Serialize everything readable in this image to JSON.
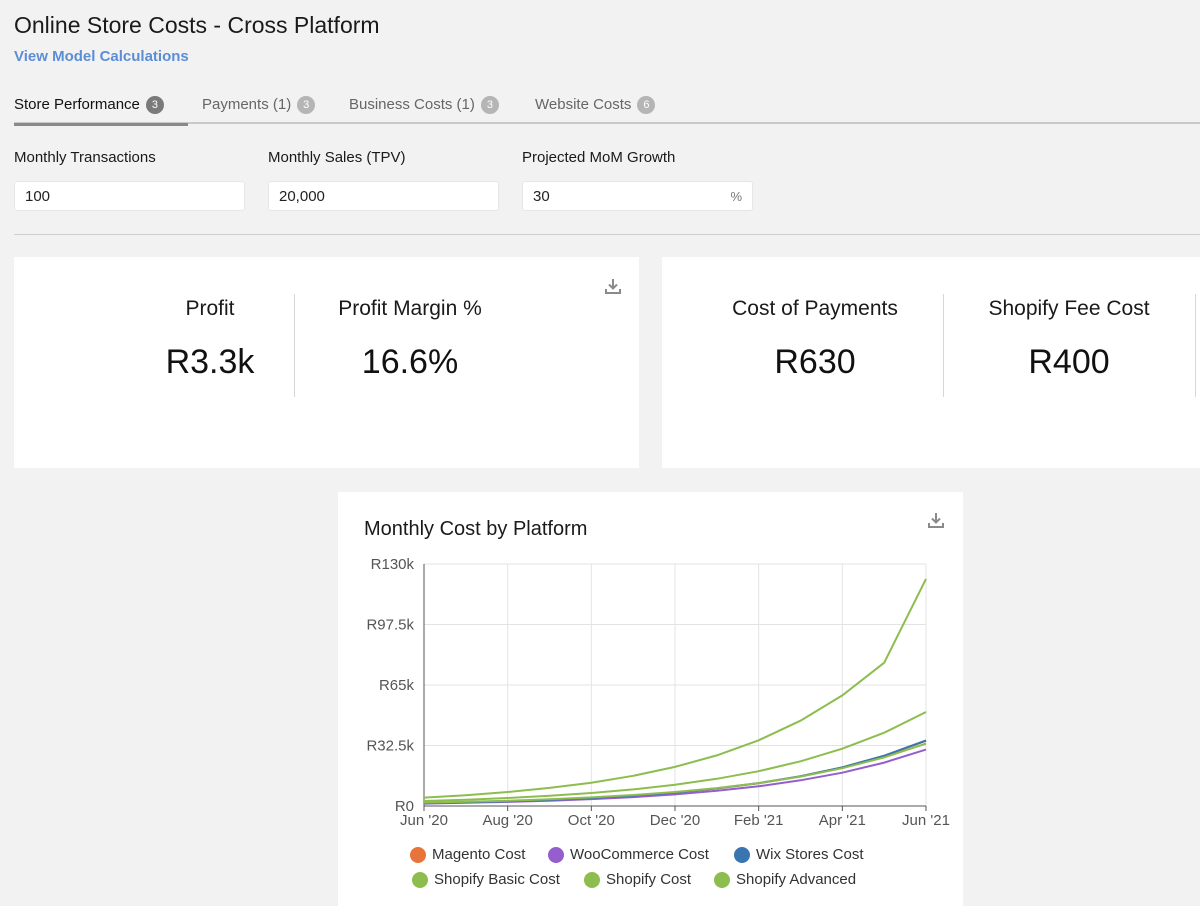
{
  "header": {
    "title": "Online Store Costs - Cross Platform",
    "link": "View Model Calculations"
  },
  "tabs": [
    {
      "label": "Store Performance",
      "badge": "3",
      "active": true
    },
    {
      "label": "Payments (1)",
      "badge": "3",
      "active": false
    },
    {
      "label": "Business Costs (1)",
      "badge": "3",
      "active": false
    },
    {
      "label": "Website Costs",
      "badge": "6",
      "active": false
    }
  ],
  "inputs": [
    {
      "label": "Monthly Transactions",
      "value": "100",
      "unit": ""
    },
    {
      "label": "Monthly Sales (TPV)",
      "value": "20,000",
      "unit": ""
    },
    {
      "label": "Projected MoM Growth",
      "value": "30",
      "unit": "%"
    }
  ],
  "kpi_card_1": {
    "items": [
      {
        "label": "Profit",
        "value": "R3.3k"
      },
      {
        "label": "Profit Margin %",
        "value": "16.6%"
      }
    ]
  },
  "kpi_card_2": {
    "items": [
      {
        "label": "Cost of Payments",
        "value": "R630"
      },
      {
        "label": "Shopify Fee Cost",
        "value": "R400"
      }
    ]
  },
  "icons": {
    "download": "download-icon"
  },
  "chart_data": {
    "type": "line",
    "title": "Monthly Cost by Platform",
    "xlabel": "",
    "ylabel": "",
    "x": [
      "Jun '20",
      "Jul '20",
      "Aug '20",
      "Sep '20",
      "Oct '20",
      "Nov '20",
      "Dec '20",
      "Jan '21",
      "Feb '21",
      "Mar '21",
      "Apr '21",
      "May '21",
      "Jun '21"
    ],
    "x_tick_labels": [
      "Jun '20",
      "Aug '20",
      "Oct '20",
      "Dec '20",
      "Feb '21",
      "Apr '21",
      "Jun '21"
    ],
    "y_tick_labels": [
      "R0",
      "R32.5k",
      "R65k",
      "R97.5k",
      "R130k"
    ],
    "y_ticks": [
      0,
      32500,
      65000,
      97500,
      130000
    ],
    "ylim": [
      0,
      130000
    ],
    "grid": true,
    "legend_position": "bottom",
    "series": [
      {
        "name": "Magento Cost",
        "color": "#e8743b",
        "values": [
          1500,
          1950,
          2500,
          3300,
          4300,
          5600,
          7200,
          9400,
          12200,
          15900,
          20700,
          26900,
          35000
        ]
      },
      {
        "name": "WooCommerce Cost",
        "color": "#945ecf",
        "values": [
          1300,
          1700,
          2200,
          2850,
          3700,
          4800,
          6250,
          8150,
          10600,
          13800,
          17900,
          23300,
          30300
        ]
      },
      {
        "name": "Wix Stores Cost",
        "color": "#3b75af",
        "values": [
          1500,
          1950,
          2550,
          3300,
          4300,
          5600,
          7250,
          9450,
          12300,
          16000,
          20800,
          27000,
          35200
        ]
      },
      {
        "name": "Shopify Basic Cost",
        "color": "#8dbd4f",
        "values": [
          2700,
          3400,
          4300,
          5500,
          7000,
          8900,
          11400,
          14600,
          18700,
          24000,
          30800,
          39400,
          50500
        ]
      },
      {
        "name": "Shopify Cost",
        "color": "#8dbd4f",
        "values": [
          1800,
          2250,
          2850,
          3600,
          4600,
          5900,
          7500,
          9600,
          12300,
          15800,
          20300,
          26100,
          33500
        ]
      },
      {
        "name": "Shopify Advanced",
        "color": "#8dbd4f",
        "values": [
          4500,
          5800,
          7500,
          9700,
          12500,
          16200,
          21000,
          27200,
          35300,
          45800,
          59400,
          77000,
          122000
        ]
      }
    ]
  }
}
